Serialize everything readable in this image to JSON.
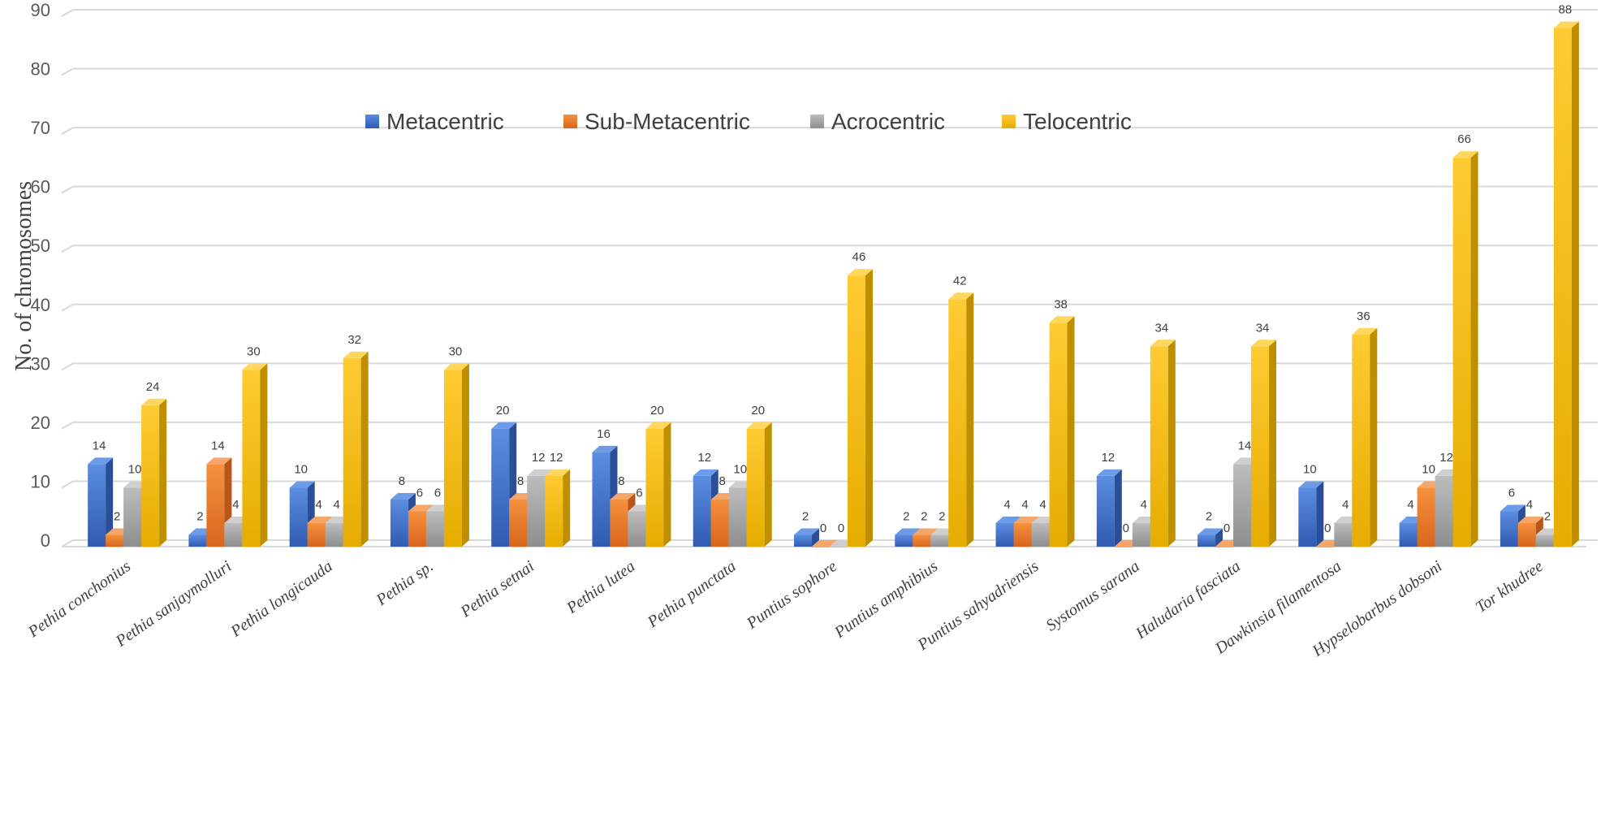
{
  "chart_data": {
    "type": "bar",
    "title": "",
    "xlabel": "",
    "ylabel": "No. of chromosomes",
    "ylim": [
      0,
      90
    ],
    "yticks": [
      0,
      10,
      20,
      30,
      40,
      50,
      60,
      70,
      80,
      90
    ],
    "grid": true,
    "legend_position": "top-center",
    "categories": [
      "Pethia conchonius",
      "Pethia sanjaymolluri",
      "Pethia longicauda",
      "Pethia sp.",
      "Pethia setnai",
      "Pethia lutea",
      "Pethia punctata",
      "Puntius sophore",
      "Puntius amphibius",
      "Puntius sahyadriensis",
      "Systomus sarana",
      "Haludaria fasciata",
      "Dawkinsia filamentosa",
      "Hypselobarbus dobsoni",
      "Tor khudree"
    ],
    "series": [
      {
        "name": "Metacentric",
        "color": "#4472C4",
        "values": [
          14,
          2,
          10,
          8,
          20,
          16,
          12,
          2,
          2,
          4,
          12,
          2,
          10,
          4,
          6
        ]
      },
      {
        "name": "Sub-Metacentric",
        "color": "#ED7D31",
        "values": [
          2,
          14,
          4,
          6,
          8,
          8,
          8,
          0,
          2,
          4,
          0,
          0,
          0,
          10,
          4
        ]
      },
      {
        "name": "Acrocentric",
        "color": "#A5A5A5",
        "values": [
          10,
          4,
          4,
          6,
          12,
          6,
          10,
          0,
          2,
          4,
          4,
          14,
          4,
          12,
          2
        ]
      },
      {
        "name": "Telocentric",
        "color": "#FFC000",
        "values": [
          24,
          30,
          32,
          30,
          12,
          20,
          20,
          46,
          42,
          38,
          34,
          34,
          36,
          66,
          88
        ]
      }
    ]
  }
}
